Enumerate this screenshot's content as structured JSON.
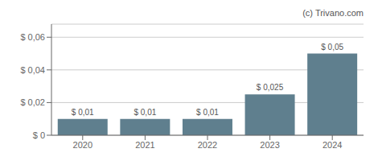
{
  "chart_data": {
    "type": "bar",
    "categories": [
      "2020",
      "2021",
      "2022",
      "2023",
      "2024"
    ],
    "values": [
      0.01,
      0.01,
      0.01,
      0.025,
      0.05
    ],
    "value_labels": [
      "$ 0,01",
      "$ 0,01",
      "$ 0,01",
      "$ 0,025",
      "$ 0,05"
    ],
    "data_labels": true,
    "color": "#5f7f8e",
    "ylim": [
      0,
      0.068
    ],
    "yticks": [
      {
        "value": 0,
        "label": "$ 0"
      },
      {
        "value": 0.02,
        "label": "$ 0,02"
      },
      {
        "value": 0.04,
        "label": "$ 0,04"
      },
      {
        "value": 0.06,
        "label": "$ 0,06"
      }
    ],
    "grid": true,
    "annotations": [
      "(c) Trivano.com"
    ]
  }
}
